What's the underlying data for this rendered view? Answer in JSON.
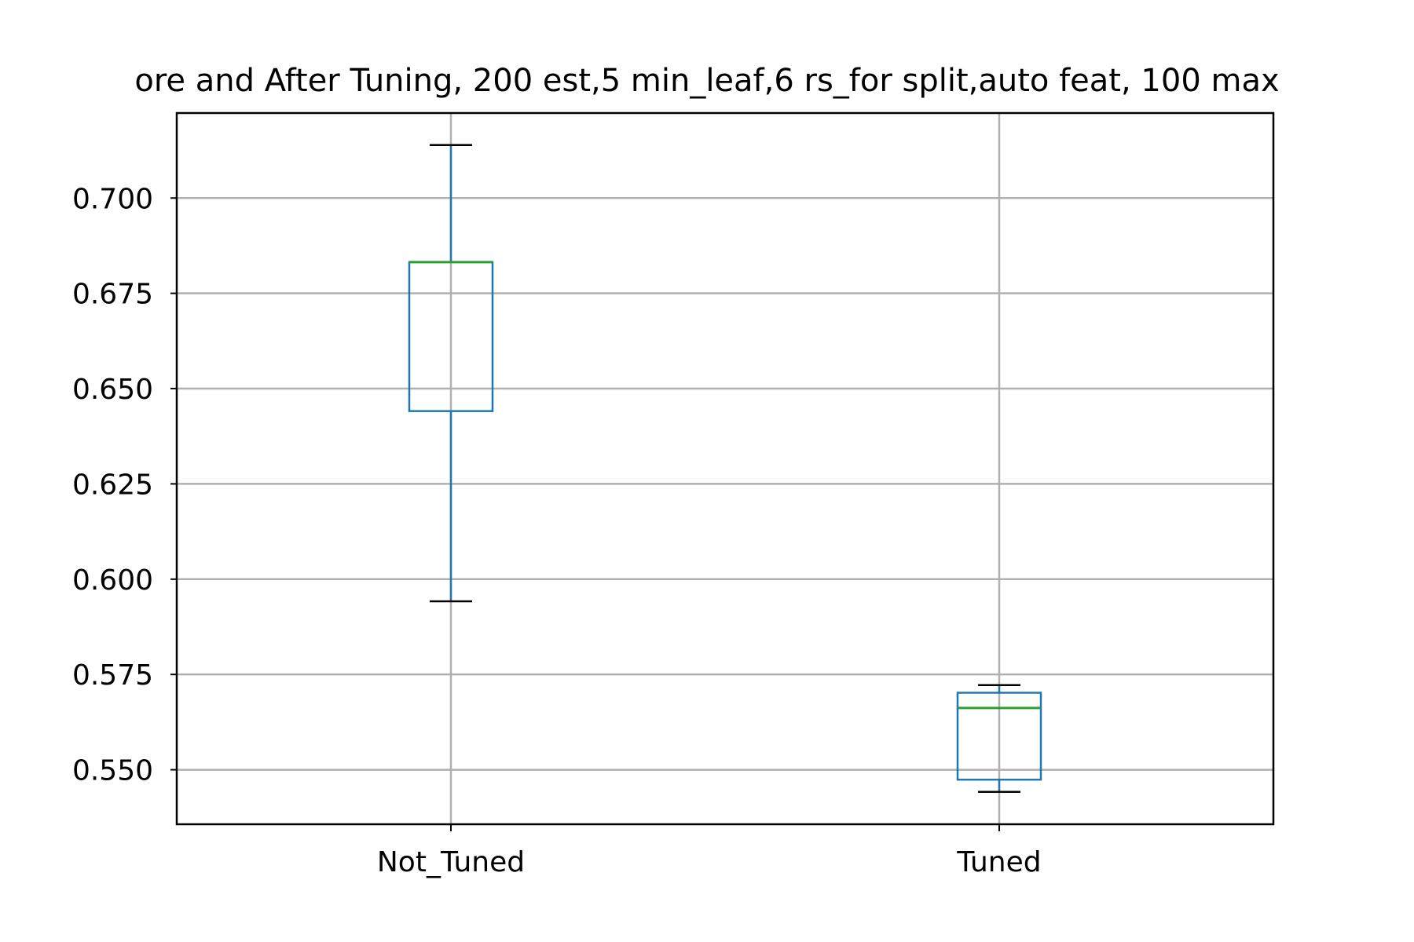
{
  "chart_data": {
    "type": "box",
    "title": "ore and After Tuning, 200 est,5 min_leaf,6 rs_for split,auto feat, 100 max",
    "xlabel": "",
    "ylabel": "",
    "categories": [
      "Not_Tuned",
      "Tuned"
    ],
    "boxes": [
      {
        "category": "Not_Tuned",
        "whisker_low": 0.5942,
        "q1": 0.6441,
        "median": 0.6832,
        "q3": 0.6832,
        "whisker_high": 0.7139
      },
      {
        "category": "Tuned",
        "whisker_low": 0.5442,
        "q1": 0.5474,
        "median": 0.5662,
        "q3": 0.5702,
        "whisker_high": 0.5722
      }
    ],
    "ylim": [
      0.5357,
      0.7223
    ],
    "yticks": [
      0.55,
      0.575,
      0.6,
      0.625,
      0.65,
      0.675,
      0.7
    ],
    "ytick_labels": [
      "0.550",
      "0.575",
      "0.600",
      "0.625",
      "0.650",
      "0.675",
      "0.700"
    ],
    "grid": true,
    "legend": "none",
    "colors": {
      "box": "#1f77b4",
      "median": "#2ca02c",
      "caps": "#000000",
      "grid": "#b0b0b0"
    }
  }
}
